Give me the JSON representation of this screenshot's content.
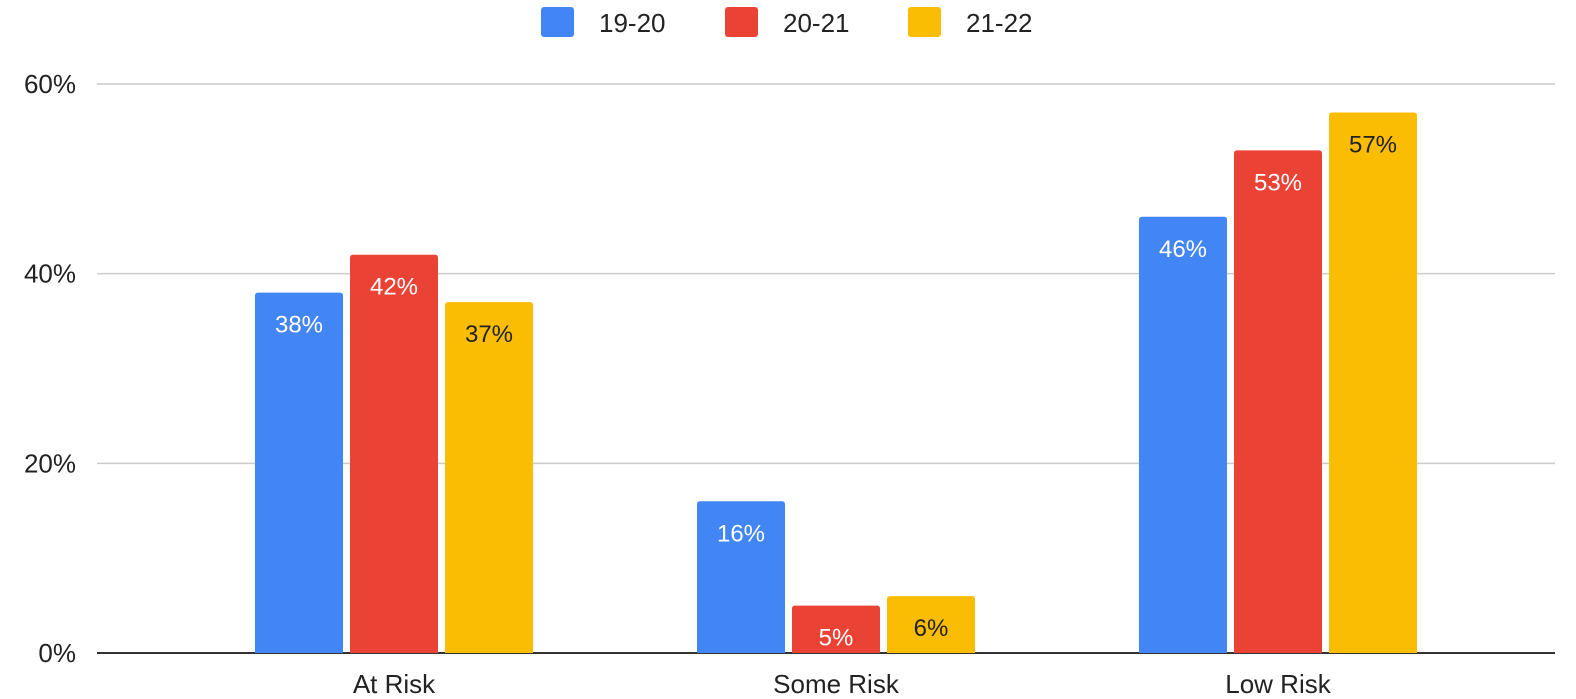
{
  "chart_data": {
    "type": "bar",
    "categories": [
      "At Risk",
      "Some Risk",
      "Low Risk"
    ],
    "series": [
      {
        "name": "19-20",
        "values": [
          38,
          16,
          46
        ],
        "labels": [
          "38%",
          "16%",
          "46%"
        ],
        "color": "#4285F4",
        "label_color": "#ffffff"
      },
      {
        "name": "20-21",
        "values": [
          42,
          5,
          53
        ],
        "labels": [
          "42%",
          "5%",
          "53%"
        ],
        "color": "#EA4335",
        "label_color": "#ffffff"
      },
      {
        "name": "21-22",
        "values": [
          37,
          6,
          57
        ],
        "labels": [
          "37%",
          "6%",
          "57%"
        ],
        "color": "#FBBC04",
        "label_color": "#222222"
      }
    ],
    "y_ticks": [
      0,
      20,
      40,
      60
    ],
    "y_tick_labels": [
      "0%",
      "20%",
      "40%",
      "60%"
    ],
    "ylim": [
      0,
      60
    ],
    "grid": true,
    "legend_position": "top-center",
    "title": "",
    "xlabel": "",
    "ylabel": ""
  }
}
